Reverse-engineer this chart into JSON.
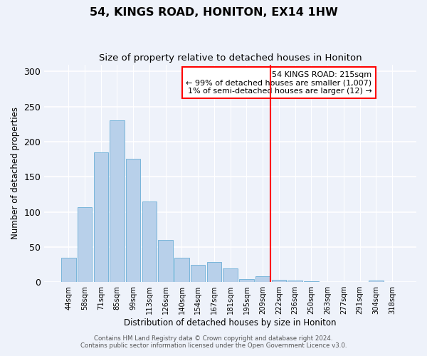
{
  "title": "54, KINGS ROAD, HONITON, EX14 1HW",
  "subtitle": "Size of property relative to detached houses in Honiton",
  "xlabel": "Distribution of detached houses by size in Honiton",
  "ylabel": "Number of detached properties",
  "categories": [
    "44sqm",
    "58sqm",
    "71sqm",
    "85sqm",
    "99sqm",
    "113sqm",
    "126sqm",
    "140sqm",
    "154sqm",
    "167sqm",
    "181sqm",
    "195sqm",
    "209sqm",
    "222sqm",
    "236sqm",
    "250sqm",
    "263sqm",
    "277sqm",
    "291sqm",
    "304sqm",
    "318sqm"
  ],
  "values": [
    35,
    107,
    185,
    230,
    176,
    115,
    60,
    35,
    25,
    29,
    19,
    4,
    8,
    3,
    2,
    1,
    0,
    0,
    0,
    2,
    0
  ],
  "bar_color": "#b8d0ea",
  "bar_edge_color": "#6aaed6",
  "background_color": "#eef2fa",
  "grid_color": "#ffffff",
  "ylim": [
    0,
    310
  ],
  "yticks": [
    0,
    50,
    100,
    150,
    200,
    250,
    300
  ],
  "red_line_x": 13.0,
  "red_line_label": "54 KINGS ROAD: 215sqm",
  "annotation_line1": "← 99% of detached houses are smaller (1,007)",
  "annotation_line2": "1% of semi-detached houses are larger (12) →",
  "footer1": "Contains HM Land Registry data © Crown copyright and database right 2024.",
  "footer2": "Contains public sector information licensed under the Open Government Licence v3.0."
}
